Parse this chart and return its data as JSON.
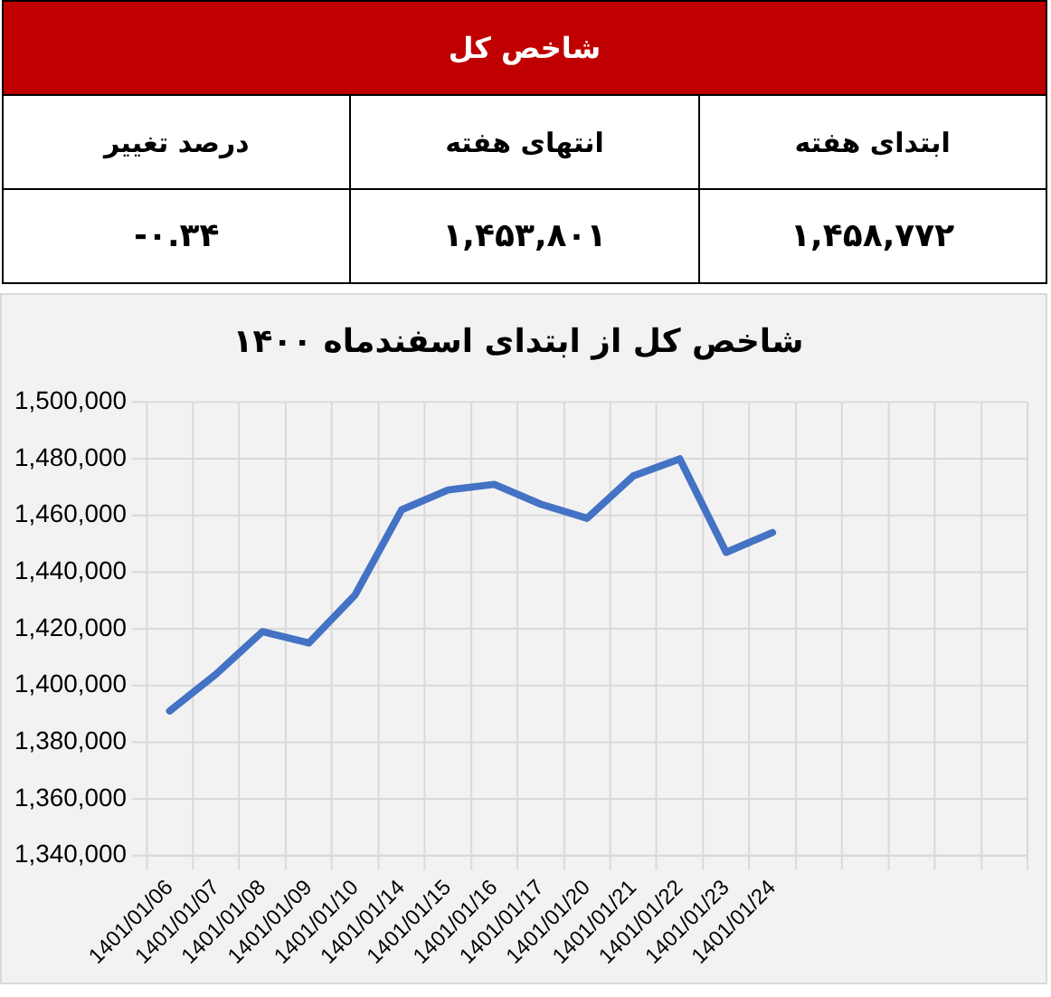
{
  "chart_data": [
    {
      "type": "other",
      "title": "شاخص کل",
      "categories": [
        "درصد تغییر",
        "انتهای هفته",
        "ابتدای هفته"
      ],
      "annotations": [
        "-۰.۳۴",
        "۱,۴۵۳,۸۰۱",
        "۱,۴۵۸,۷۷۲"
      ],
      "color": "#c00000"
    },
    {
      "type": "line",
      "title": "شاخص کل از ابتدای اسفندماه ۱۴۰۰",
      "categories": [
        "1401/01/06",
        "1401/01/07",
        "1401/01/08",
        "1401/01/09",
        "1401/01/10",
        "1401/01/14",
        "1401/01/15",
        "1401/01/16",
        "1401/01/17",
        "1401/01/20",
        "1401/01/21",
        "1401/01/22",
        "1401/01/23",
        "1401/01/24",
        null,
        null,
        null,
        null,
        null
      ],
      "series": [
        {
          "color": "#4472c4",
          "values": [
            1391000,
            1404000,
            1419000,
            1415000,
            1432000,
            1462000,
            1469000,
            1471000,
            1464000,
            1459000,
            1474000,
            1480000,
            1447000,
            1454000,
            null,
            null,
            null,
            null,
            null
          ]
        }
      ],
      "ylim": [
        1340000,
        1500000
      ],
      "yticks": [
        {
          "value": 1340000,
          "label": "1,340,000"
        },
        {
          "value": 1360000,
          "label": "1,360,000"
        },
        {
          "value": 1380000,
          "label": "1,380,000"
        },
        {
          "value": 1400000,
          "label": "1,400,000"
        },
        {
          "value": 1420000,
          "label": "1,420,000"
        },
        {
          "value": 1440000,
          "label": "1,440,000"
        },
        {
          "value": 1460000,
          "label": "1,460,000"
        },
        {
          "value": 1480000,
          "label": "1,480,000"
        },
        {
          "value": 1500000,
          "label": "1,500,000"
        }
      ],
      "grid": true,
      "legend": false,
      "marker": "none",
      "line_style": "solid"
    }
  ]
}
